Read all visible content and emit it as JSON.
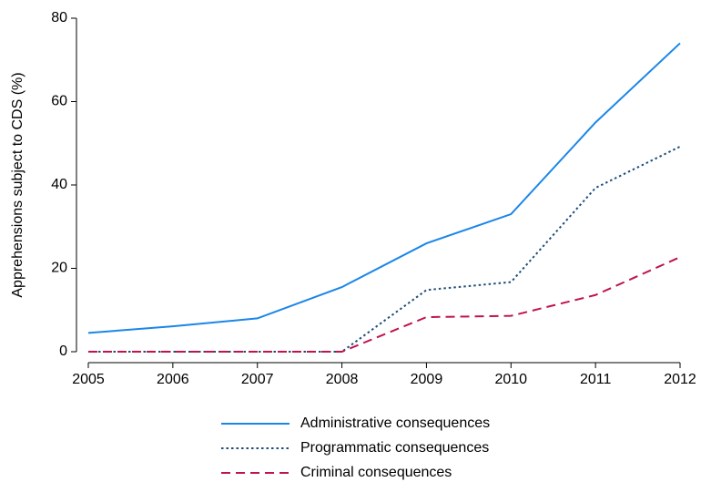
{
  "chart_data": {
    "type": "line",
    "y_label": "Apprehensions subject to CDS (%)",
    "x": [
      2005,
      2006,
      2007,
      2008,
      2009,
      2010,
      2011,
      2012
    ],
    "series": [
      {
        "name": "Administrative consequences",
        "color": "#1a86e8",
        "style": "solid",
        "values": [
          4.5,
          6.1,
          8,
          15.5,
          26,
          33,
          55,
          74
        ]
      },
      {
        "name": "Programmatic consequences",
        "color": "#1f4e79",
        "style": "dotted",
        "values": [
          0,
          0,
          0,
          0,
          14.8,
          16.7,
          39.3,
          49.2
        ]
      },
      {
        "name": "Criminal consequences",
        "color": "#c0144b",
        "style": "dashed",
        "values": [
          0,
          0,
          0,
          0,
          8.3,
          8.6,
          13.6,
          22.7
        ]
      }
    ],
    "xlim": [
      2005,
      2012
    ],
    "xticks": [
      2005,
      2006,
      2007,
      2008,
      2009,
      2010,
      2011,
      2012
    ],
    "ylim": [
      0,
      80
    ],
    "yticks": [
      0,
      20,
      40,
      60,
      80
    ],
    "grid": false,
    "legend": "bottom"
  }
}
